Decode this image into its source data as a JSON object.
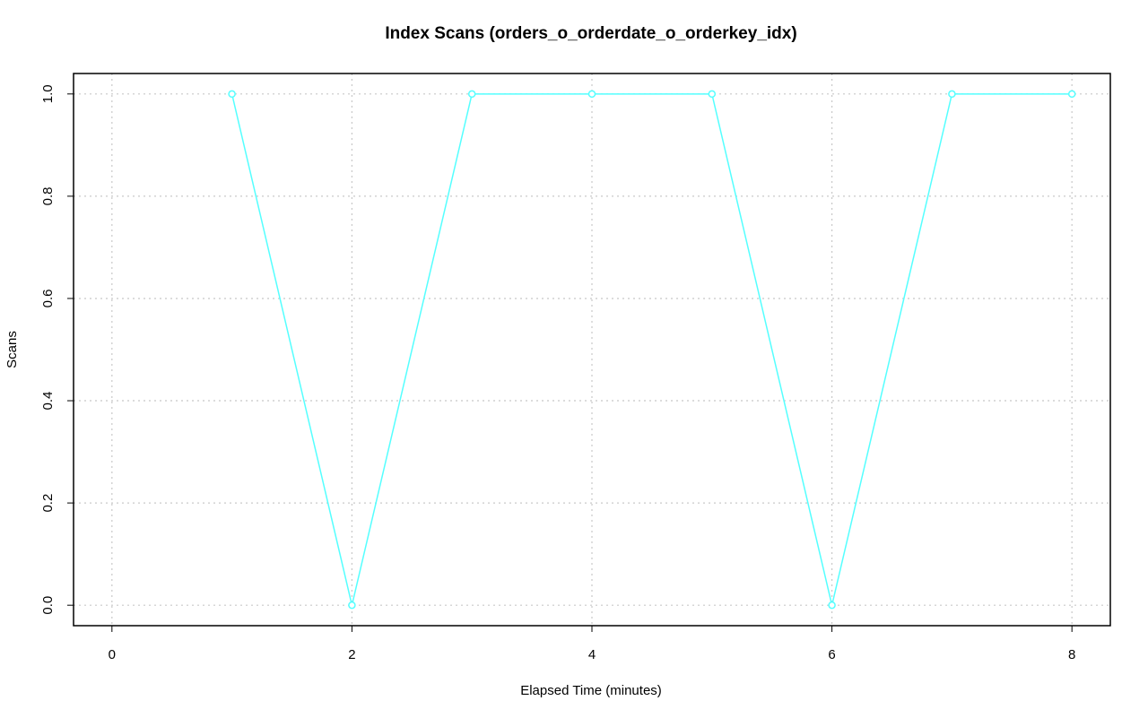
{
  "chart_data": {
    "type": "line",
    "title": "Index Scans (orders_o_orderdate_o_orderkey_idx)",
    "x_label": "Elapsed Time (minutes)",
    "y_label": "Scans",
    "x": [
      1,
      2,
      3,
      4,
      5,
      6,
      7,
      8
    ],
    "values": [
      1,
      0,
      1,
      1,
      1,
      0,
      1,
      1
    ],
    "color": "#55ffff",
    "xlim": [
      -0.32,
      8.32
    ],
    "xticks": [
      0,
      2,
      4,
      6,
      8
    ],
    "ylim": [
      -0.04,
      1.04
    ],
    "yticks": [
      {
        "value": 0,
        "label": "0.0"
      },
      {
        "value": 0.2,
        "label": "0.2"
      },
      {
        "value": 0.4,
        "label": "0.4"
      },
      {
        "value": 0.6,
        "label": "0.6"
      },
      {
        "value": 0.8,
        "label": "0.8"
      },
      {
        "value": 1,
        "label": "1.0"
      }
    ],
    "grid": true
  }
}
